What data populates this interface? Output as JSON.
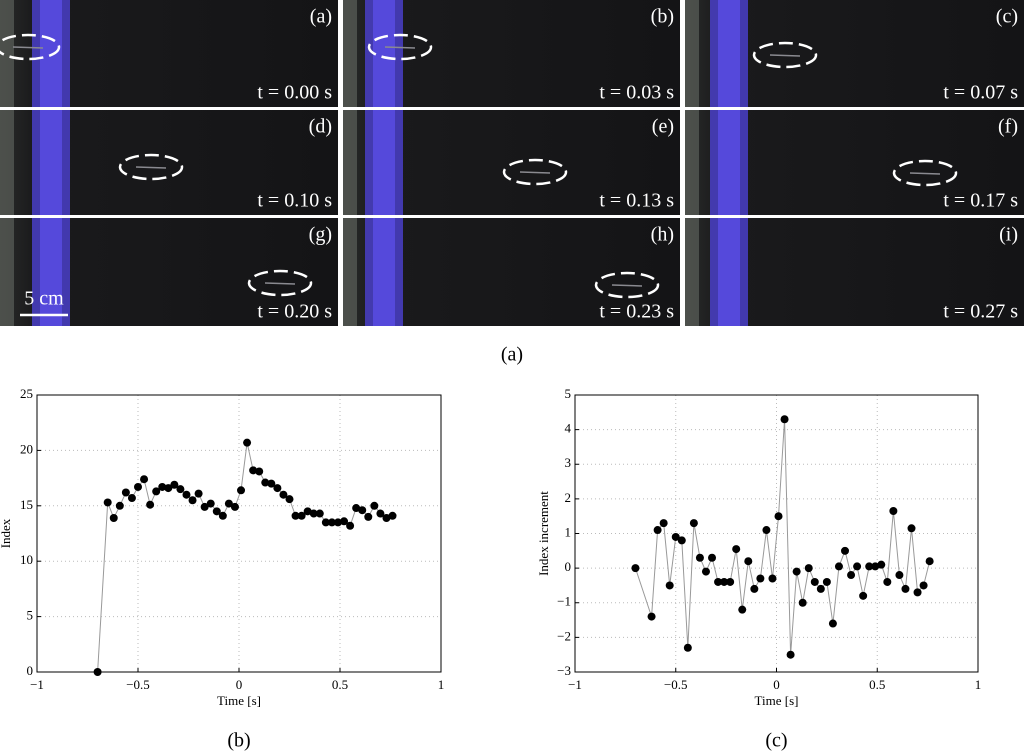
{
  "figure": {
    "panels": [
      {
        "label": "(a)",
        "time": "t = 0.00 s"
      },
      {
        "label": "(b)",
        "time": "t = 0.03 s"
      },
      {
        "label": "(c)",
        "time": "t = 0.07 s"
      },
      {
        "label": "(d)",
        "time": "t = 0.10 s"
      },
      {
        "label": "(e)",
        "time": "t = 0.13 s"
      },
      {
        "label": "(f)",
        "time": "t = 0.17 s"
      },
      {
        "label": "(g)",
        "time": "t = 0.20 s"
      },
      {
        "label": "(h)",
        "time": "t = 0.23 s"
      },
      {
        "label": "(i)",
        "time": "t = 0.27 s"
      }
    ],
    "scale_bar": "5 cm",
    "caption": "(a)"
  },
  "chart_data": [
    {
      "type": "line",
      "caption": "(b)",
      "xlabel": "Time [s]",
      "ylabel": "Index",
      "xlim": [
        -1,
        1
      ],
      "ylim": [
        0,
        25
      ],
      "xticks": [
        {
          "value": -1,
          "label": "−1"
        },
        {
          "value": -0.5,
          "label": "−0.5"
        },
        0,
        0.5,
        1
      ],
      "yticks": [
        0,
        5,
        10,
        15,
        20,
        25
      ],
      "grid": true,
      "color": "#000000",
      "x": [
        -0.7,
        -0.65,
        -0.62,
        -0.59,
        -0.56,
        -0.53,
        -0.5,
        -0.47,
        -0.44,
        -0.41,
        -0.38,
        -0.35,
        -0.32,
        -0.29,
        -0.26,
        -0.23,
        -0.2,
        -0.17,
        -0.14,
        -0.11,
        -0.08,
        -0.05,
        -0.02,
        0.01,
        0.04,
        0.07,
        0.1,
        0.13,
        0.16,
        0.19,
        0.22,
        0.25,
        0.28,
        0.31,
        0.34,
        0.37,
        0.4,
        0.43,
        0.46,
        0.49,
        0.52,
        0.55,
        0.58,
        0.61,
        0.64,
        0.67,
        0.7,
        0.73,
        0.76
      ],
      "values": [
        0,
        15.3,
        13.9,
        15.0,
        16.2,
        15.7,
        16.7,
        17.4,
        15.1,
        16.3,
        16.7,
        16.6,
        16.9,
        16.5,
        16.0,
        15.5,
        16.1,
        14.9,
        15.2,
        14.5,
        14.1,
        15.2,
        14.9,
        16.4,
        20.7,
        18.2,
        18.1,
        17.1,
        17.0,
        16.6,
        16.0,
        15.6,
        14.1,
        14.1,
        14.5,
        14.3,
        14.3,
        13.5,
        13.5,
        13.5,
        13.6,
        13.2,
        14.8,
        14.6,
        14.0,
        15.0,
        14.3,
        13.9,
        14.1
      ]
    },
    {
      "type": "line",
      "caption": "(c)",
      "xlabel": "Time [s]",
      "ylabel": "Index increment",
      "xlim": [
        -1,
        1
      ],
      "ylim": [
        -3,
        5
      ],
      "xticks": [
        {
          "value": -1,
          "label": "−1"
        },
        {
          "value": -0.5,
          "label": "−0.5"
        },
        0,
        0.5,
        1
      ],
      "yticks": [
        {
          "value": -3,
          "label": "−3"
        },
        {
          "value": -2,
          "label": "−2"
        },
        {
          "value": -1,
          "label": "−1"
        },
        0,
        1,
        2,
        3,
        4,
        5
      ],
      "grid": true,
      "color": "#000000",
      "x": [
        -0.7,
        -0.62,
        -0.59,
        -0.56,
        -0.53,
        -0.5,
        -0.47,
        -0.44,
        -0.41,
        -0.38,
        -0.35,
        -0.32,
        -0.29,
        -0.26,
        -0.23,
        -0.2,
        -0.17,
        -0.14,
        -0.11,
        -0.08,
        -0.05,
        -0.02,
        0.01,
        0.04,
        0.07,
        0.1,
        0.13,
        0.16,
        0.19,
        0.22,
        0.25,
        0.28,
        0.31,
        0.34,
        0.37,
        0.4,
        0.43,
        0.46,
        0.49,
        0.52,
        0.55,
        0.58,
        0.61,
        0.64,
        0.67,
        0.7,
        0.73,
        0.76
      ],
      "values": [
        0,
        -1.4,
        1.1,
        1.3,
        -0.5,
        0.9,
        0.8,
        -2.3,
        1.3,
        0.3,
        -0.1,
        0.3,
        -0.4,
        -0.4,
        -0.4,
        0.55,
        -1.2,
        0.2,
        -0.6,
        -0.3,
        1.1,
        -0.3,
        1.5,
        4.3,
        -2.5,
        -0.1,
        -1.0,
        0,
        -0.4,
        -0.6,
        -0.4,
        -1.6,
        0.05,
        0.5,
        -0.2,
        0.05,
        -0.8,
        0.05,
        0.05,
        0.1,
        -0.4,
        1.65,
        -0.2,
        -0.6,
        1.15,
        -0.7,
        -0.5,
        0.2
      ]
    }
  ]
}
